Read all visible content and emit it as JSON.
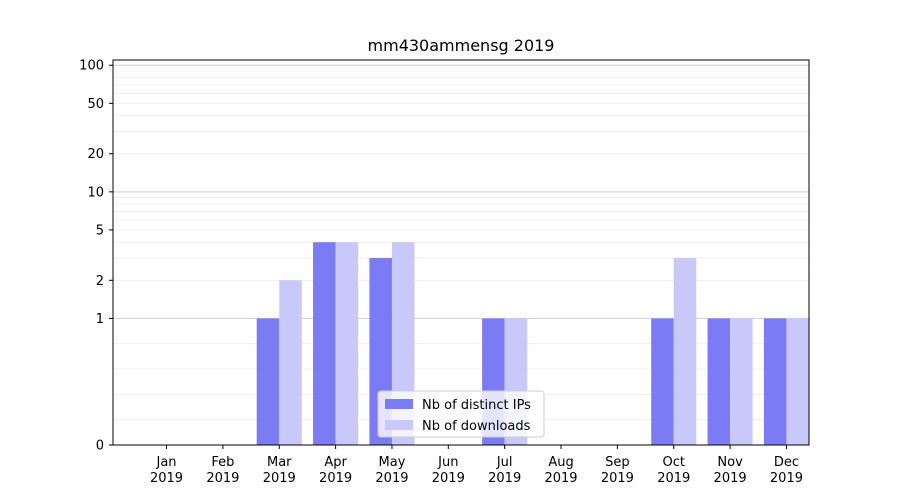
{
  "chart_data": {
    "type": "bar",
    "title": "mm430ammensg 2019",
    "xlabel": "",
    "ylabel": "",
    "y_scale": "symlog",
    "ylim": [
      0,
      110
    ],
    "y_ticks": [
      0,
      1,
      2,
      5,
      10,
      20,
      50,
      100
    ],
    "y_tick_labels": [
      "0",
      "1",
      "2",
      "5",
      "10",
      "20",
      "50",
      "100"
    ],
    "categories": [
      "Jan\n2019",
      "Feb\n2019",
      "Mar\n2019",
      "Apr\n2019",
      "May\n2019",
      "Jun\n2019",
      "Jul\n2019",
      "Aug\n2019",
      "Sep\n2019",
      "Oct\n2019",
      "Nov\n2019",
      "Dec\n2019"
    ],
    "category_lines": [
      [
        "Jan",
        "2019"
      ],
      [
        "Feb",
        "2019"
      ],
      [
        "Mar",
        "2019"
      ],
      [
        "Apr",
        "2019"
      ],
      [
        "May",
        "2019"
      ],
      [
        "Jun",
        "2019"
      ],
      [
        "Jul",
        "2019"
      ],
      [
        "Aug",
        "2019"
      ],
      [
        "Sep",
        "2019"
      ],
      [
        "Oct",
        "2019"
      ],
      [
        "Nov",
        "2019"
      ],
      [
        "Dec",
        "2019"
      ]
    ],
    "series": [
      {
        "name": "Nb of distinct IPs",
        "color": "#7b7bf5",
        "values": [
          0,
          0,
          1,
          4,
          3,
          0,
          1,
          0,
          0,
          1,
          1,
          1
        ]
      },
      {
        "name": "Nb of downloads",
        "color": "#c8c8fa",
        "values": [
          0,
          0,
          2,
          4,
          4,
          0,
          1,
          0,
          0,
          3,
          1,
          1
        ]
      }
    ],
    "grid": true,
    "legend_position": "lower-center"
  }
}
